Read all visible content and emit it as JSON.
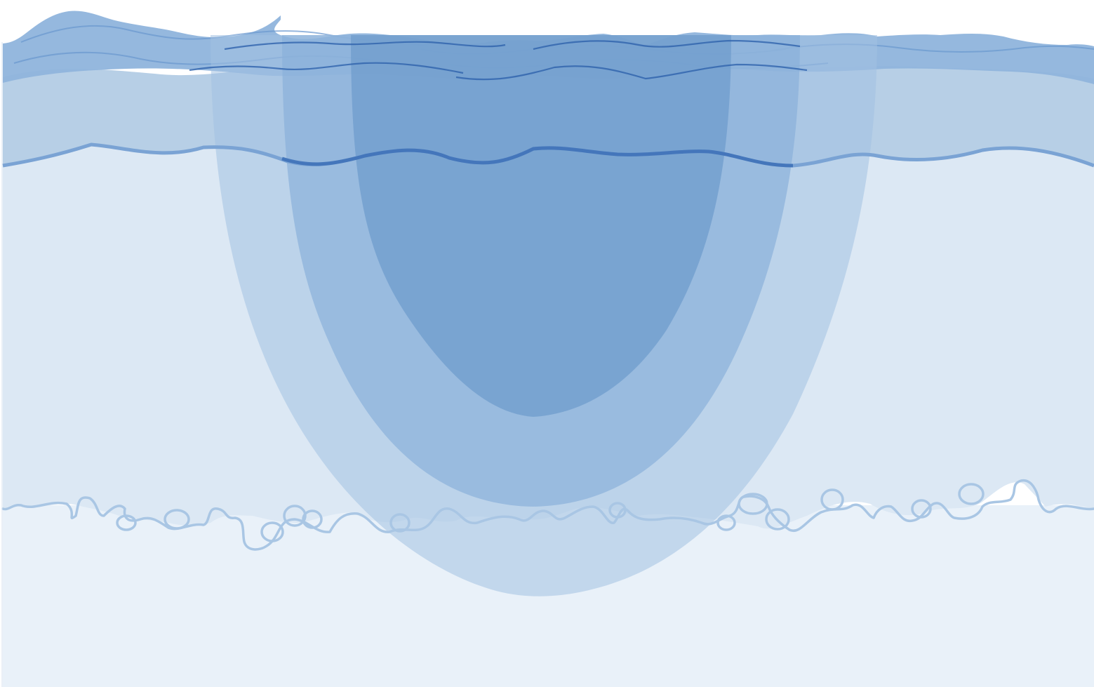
{
  "figure": {
    "description_text": "",
    "layers": [
      {
        "name": "surface-layer",
        "color": "#8fb4dc"
      },
      {
        "name": "upper-layer",
        "color": "#b7cfe6"
      },
      {
        "name": "middle-layer",
        "color": "#dce8f4"
      },
      {
        "name": "deep-layer",
        "color": "#e9f1f9"
      }
    ],
    "zones": [
      {
        "name": "outer-zone",
        "color": "#b4cde6"
      },
      {
        "name": "middle-zone",
        "color": "#97b9dc"
      },
      {
        "name": "inner-zone",
        "color": "#78a2cc"
      }
    ],
    "line_colors": {
      "boundary": "#3b6fb6",
      "boundary_light": "#7aa3d4",
      "bubbles": "#a9c6e4",
      "wave": "#2f63ad"
    }
  }
}
